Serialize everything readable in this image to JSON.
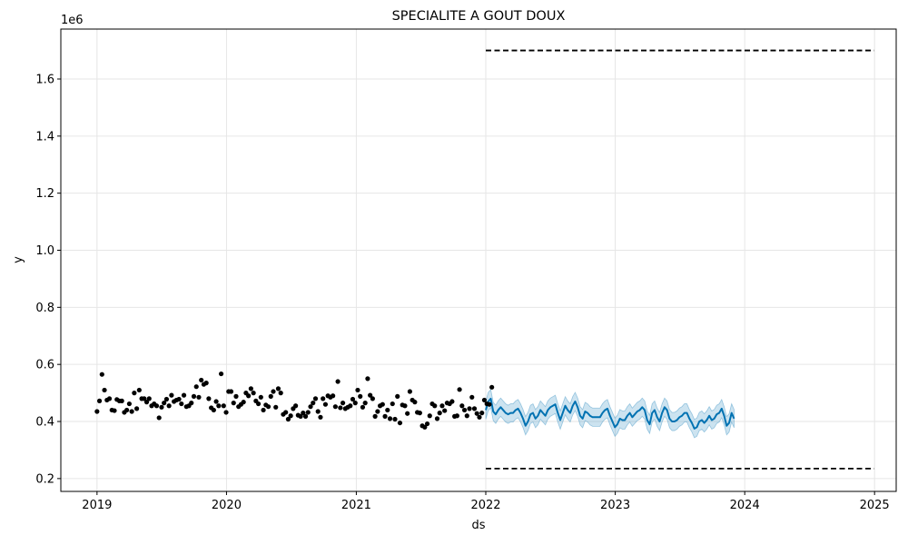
{
  "chart_data": {
    "type": "line",
    "title": "SPECIALITE A GOUT DOUX",
    "xlabel": "ds",
    "ylabel": "y",
    "y_offset_label": "1e6",
    "xlim": [
      "2018-09-21",
      "2025-03-03"
    ],
    "ylim": [
      0.155,
      1.775
    ],
    "x_ticks": [
      {
        "date": "2019-01-01",
        "label": "2019"
      },
      {
        "date": "2020-01-01",
        "label": "2020"
      },
      {
        "date": "2021-01-01",
        "label": "2021"
      },
      {
        "date": "2022-01-01",
        "label": "2022"
      },
      {
        "date": "2023-01-01",
        "label": "2023"
      },
      {
        "date": "2024-01-01",
        "label": "2024"
      },
      {
        "date": "2025-01-01",
        "label": "2025"
      }
    ],
    "y_ticks": [
      {
        "value": 0.2,
        "label": "0.2"
      },
      {
        "value": 0.4,
        "label": "0.4"
      },
      {
        "value": 0.6,
        "label": "0.6"
      },
      {
        "value": 0.8,
        "label": "0.8"
      },
      {
        "value": 1.0,
        "label": "1.0"
      },
      {
        "value": 1.2,
        "label": "1.2"
      },
      {
        "value": 1.4,
        "label": "1.4"
      },
      {
        "value": 1.6,
        "label": "1.6"
      }
    ],
    "grid": true,
    "colors": {
      "observed": "#000000",
      "forecast": "#0072b2",
      "interval": "#0072b2",
      "limits": "#000000",
      "grid": "#e6e6e6"
    },
    "cap": {
      "value": 1.7,
      "x_start": "2022-01-01",
      "x_end": "2024-12-31"
    },
    "floor": {
      "value": 0.235,
      "x_start": "2022-01-01",
      "x_end": "2024-12-31"
    },
    "series": [
      {
        "kind": "observed",
        "x_start": "2019-01-01",
        "step_days": 7,
        "values": [
          0.435,
          0.472,
          0.565,
          0.51,
          0.475,
          0.48,
          0.44,
          0.438,
          0.477,
          0.472,
          0.472,
          0.432,
          0.44,
          0.462,
          0.435,
          0.5,
          0.445,
          0.51,
          0.48,
          0.48,
          0.468,
          0.48,
          0.455,
          0.462,
          0.455,
          0.413,
          0.45,
          0.465,
          0.478,
          0.455,
          0.492,
          0.47,
          0.475,
          0.478,
          0.462,
          0.492,
          0.452,
          0.455,
          0.465,
          0.488,
          0.522,
          0.485,
          0.545,
          0.53,
          0.535,
          0.48,
          0.448,
          0.44,
          0.47,
          0.455,
          0.567,
          0.455,
          0.432,
          0.505,
          0.505,
          0.465,
          0.488,
          0.452,
          0.46,
          0.468,
          0.5,
          0.49,
          0.515,
          0.5,
          0.472,
          0.462,
          0.485,
          0.44,
          0.458,
          0.452,
          0.488,
          0.505,
          0.45,
          0.515,
          0.5,
          0.425,
          0.432,
          0.408,
          0.42,
          0.445,
          0.455,
          0.422,
          0.418,
          0.43,
          0.418,
          0.432,
          0.452,
          0.465,
          0.48,
          0.435,
          0.415,
          0.48,
          0.46,
          0.49,
          0.485,
          0.49,
          0.452,
          0.54,
          0.448,
          0.465,
          0.445,
          0.45,
          0.455,
          0.478,
          0.465,
          0.51,
          0.488,
          0.45,
          0.465,
          0.55,
          0.492,
          0.48,
          0.418,
          0.435,
          0.455,
          0.46,
          0.418,
          0.44,
          0.41,
          0.462,
          0.408,
          0.488,
          0.395,
          0.458,
          0.455,
          0.428,
          0.505,
          0.475,
          0.468,
          0.432,
          0.43,
          0.385,
          0.38,
          0.392,
          0.42,
          0.462,
          0.455,
          0.41,
          0.43,
          0.455,
          0.438,
          0.465,
          0.462,
          0.47,
          0.418,
          0.42,
          0.512,
          0.455,
          0.44,
          0.42,
          0.445,
          0.485,
          0.445,
          0.428,
          0.415,
          0.43,
          0.475,
          0.462,
          0.46,
          0.52
        ]
      },
      {
        "kind": "forecast",
        "x_start": "2022-01-01",
        "step_days": 7,
        "yhat": [
          0.44,
          0.47,
          0.48,
          0.435,
          0.425,
          0.44,
          0.45,
          0.44,
          0.43,
          0.425,
          0.43,
          0.43,
          0.44,
          0.445,
          0.43,
          0.41,
          0.385,
          0.4,
          0.425,
          0.43,
          0.41,
          0.42,
          0.44,
          0.43,
          0.42,
          0.44,
          0.45,
          0.455,
          0.46,
          0.43,
          0.405,
          0.43,
          0.455,
          0.44,
          0.43,
          0.455,
          0.47,
          0.45,
          0.42,
          0.41,
          0.435,
          0.43,
          0.42,
          0.415,
          0.415,
          0.415,
          0.415,
          0.43,
          0.44,
          0.445,
          0.42,
          0.4,
          0.38,
          0.39,
          0.41,
          0.405,
          0.405,
          0.42,
          0.43,
          0.415,
          0.425,
          0.435,
          0.44,
          0.45,
          0.44,
          0.405,
          0.39,
          0.43,
          0.44,
          0.415,
          0.4,
          0.43,
          0.45,
          0.44,
          0.41,
          0.4,
          0.4,
          0.405,
          0.415,
          0.42,
          0.43,
          0.43,
          0.41,
          0.395,
          0.375,
          0.38,
          0.4,
          0.405,
          0.395,
          0.405,
          0.42,
          0.405,
          0.41,
          0.425,
          0.43,
          0.445,
          0.42,
          0.385,
          0.395,
          0.43,
          0.41
        ],
        "upper": [
          0.472,
          0.502,
          0.512,
          0.467,
          0.457,
          0.472,
          0.482,
          0.472,
          0.462,
          0.457,
          0.462,
          0.462,
          0.472,
          0.477,
          0.462,
          0.442,
          0.417,
          0.432,
          0.457,
          0.462,
          0.442,
          0.452,
          0.472,
          0.462,
          0.452,
          0.472,
          0.482,
          0.487,
          0.492,
          0.462,
          0.437,
          0.462,
          0.487,
          0.472,
          0.462,
          0.487,
          0.502,
          0.482,
          0.452,
          0.442,
          0.467,
          0.462,
          0.452,
          0.447,
          0.447,
          0.447,
          0.447,
          0.462,
          0.472,
          0.477,
          0.452,
          0.432,
          0.412,
          0.422,
          0.442,
          0.437,
          0.437,
          0.452,
          0.462,
          0.447,
          0.457,
          0.467,
          0.472,
          0.482,
          0.472,
          0.437,
          0.422,
          0.462,
          0.472,
          0.447,
          0.432,
          0.462,
          0.482,
          0.472,
          0.442,
          0.432,
          0.432,
          0.437,
          0.447,
          0.452,
          0.462,
          0.462,
          0.442,
          0.427,
          0.407,
          0.412,
          0.432,
          0.437,
          0.427,
          0.437,
          0.452,
          0.437,
          0.442,
          0.457,
          0.462,
          0.477,
          0.452,
          0.417,
          0.427,
          0.462,
          0.442
        ],
        "lower": [
          0.408,
          0.438,
          0.448,
          0.403,
          0.393,
          0.408,
          0.418,
          0.408,
          0.398,
          0.393,
          0.398,
          0.398,
          0.408,
          0.413,
          0.398,
          0.378,
          0.353,
          0.368,
          0.393,
          0.398,
          0.378,
          0.388,
          0.408,
          0.398,
          0.388,
          0.408,
          0.418,
          0.423,
          0.428,
          0.398,
          0.373,
          0.398,
          0.423,
          0.408,
          0.398,
          0.423,
          0.438,
          0.418,
          0.388,
          0.378,
          0.403,
          0.398,
          0.388,
          0.383,
          0.383,
          0.383,
          0.383,
          0.398,
          0.408,
          0.413,
          0.388,
          0.368,
          0.348,
          0.358,
          0.378,
          0.373,
          0.373,
          0.388,
          0.398,
          0.383,
          0.393,
          0.403,
          0.408,
          0.418,
          0.408,
          0.373,
          0.358,
          0.398,
          0.408,
          0.383,
          0.368,
          0.398,
          0.418,
          0.408,
          0.378,
          0.368,
          0.368,
          0.373,
          0.383,
          0.388,
          0.398,
          0.398,
          0.378,
          0.363,
          0.343,
          0.348,
          0.368,
          0.373,
          0.363,
          0.373,
          0.388,
          0.373,
          0.378,
          0.393,
          0.398,
          0.413,
          0.388,
          0.353,
          0.363,
          0.398,
          0.378
        ]
      }
    ]
  }
}
